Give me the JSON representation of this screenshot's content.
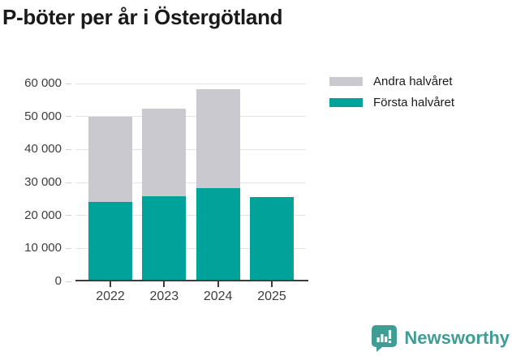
{
  "chart_data": {
    "type": "bar",
    "stacked": true,
    "title": "P-böter per år i Östergötland",
    "categories": [
      "2022",
      "2023",
      "2024",
      "2025"
    ],
    "series": [
      {
        "name": "Första halvåret",
        "color": "#00a29a",
        "values": [
          24100,
          25700,
          28200,
          25600
        ]
      },
      {
        "name": "Andra halvåret",
        "color": "#c9c9cf",
        "values": [
          25900,
          26600,
          30000,
          0
        ]
      }
    ],
    "xlabel": "",
    "ylabel": "",
    "ylim": [
      0,
      60000
    ],
    "ytick_step": 10000,
    "ytick_labels": [
      "0",
      "10 000",
      "20 000",
      "30 000",
      "40 000",
      "50 000",
      "60 000"
    ],
    "grid": true,
    "legend_position": "top-right",
    "legend_order": [
      "Andra halvåret",
      "Första halvåret"
    ]
  },
  "footer": {
    "brand": "Newsworthy",
    "logo_icon": "newsworthy-speech-bubble-bar-chart-icon",
    "brand_color": "#3f9d96"
  },
  "colors": {
    "first_half": "#00a29a",
    "second_half": "#c9c9cf",
    "axis_line": "#3c3c3c",
    "gridline": "#e3e3e7",
    "tick_text": "#3d3d3d",
    "title_text": "#1a1a1a"
  }
}
